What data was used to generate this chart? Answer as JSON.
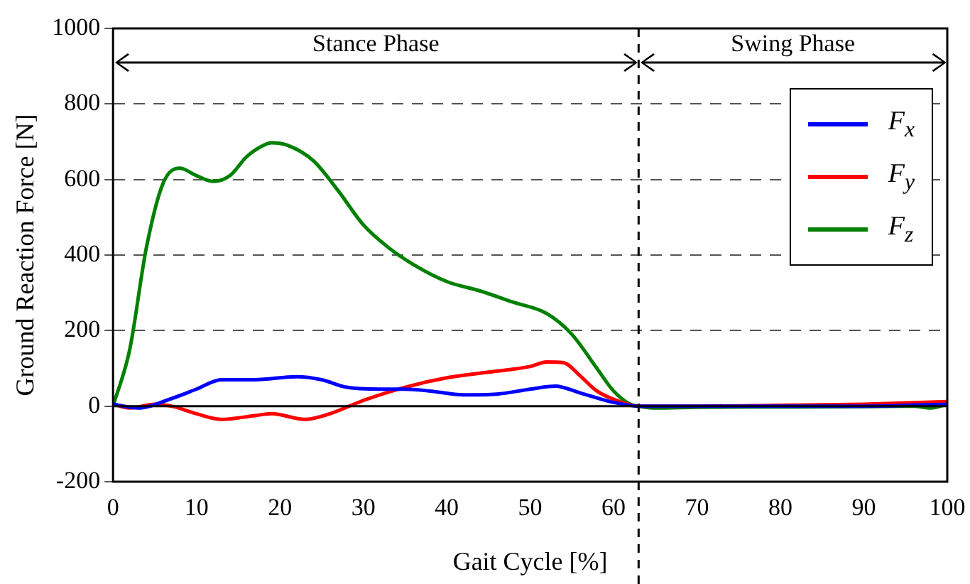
{
  "chart_data": {
    "type": "line",
    "xlabel": "Gait Cycle [%]",
    "ylabel": "Ground Reaction Force [N]",
    "xlim": [
      0,
      100
    ],
    "xticks": [
      0,
      10,
      20,
      30,
      40,
      50,
      60,
      70,
      80,
      90,
      100
    ],
    "ylim": [
      -200,
      1000
    ],
    "yticks": [
      -200,
      0,
      200,
      400,
      600,
      800,
      1000
    ],
    "grid": "y",
    "legend": "top right",
    "marker": "none",
    "line_style": "solid",
    "ref_lines": [
      {
        "axis": "x",
        "value": 63,
        "line_style": "dashed",
        "color": "#000000"
      }
    ],
    "annotations": [
      "Stance Phase",
      "Swing Phase"
    ],
    "series": [
      {
        "name": "F$_{x}$",
        "color": "#0000ff",
        "x": [
          0,
          3,
          7,
          10,
          13,
          17,
          22,
          25,
          28,
          32,
          35,
          38,
          42,
          46,
          50,
          53,
          56,
          60,
          63,
          70,
          80,
          90,
          100
        ],
        "values": [
          5,
          -5,
          20,
          45,
          70,
          70,
          78,
          70,
          50,
          45,
          45,
          40,
          30,
          32,
          45,
          53,
          35,
          10,
          0,
          0,
          0,
          0,
          5
        ]
      },
      {
        "name": "F$_{y}$",
        "color": "#ff0000",
        "x": [
          0,
          2,
          5,
          7,
          10,
          13,
          17,
          19,
          23,
          26,
          30,
          35,
          40,
          45,
          50,
          52,
          54,
          56,
          58,
          61,
          63,
          70,
          80,
          90,
          100
        ],
        "values": [
          5,
          -5,
          5,
          0,
          -20,
          -35,
          -25,
          -20,
          -35,
          -20,
          15,
          50,
          75,
          90,
          105,
          117,
          115,
          80,
          40,
          10,
          0,
          0,
          2,
          5,
          12
        ]
      },
      {
        "name": "F$_{z}$",
        "color": "#008000",
        "x": [
          0,
          2,
          4,
          6,
          8,
          10,
          12,
          14,
          16,
          18,
          19,
          21,
          24,
          27,
          30,
          33,
          36,
          40,
          44,
          48,
          52,
          55,
          58,
          60,
          62,
          63,
          65,
          70,
          80,
          90,
          96,
          98,
          100
        ],
        "values": [
          0,
          150,
          420,
          590,
          630,
          610,
          595,
          610,
          660,
          690,
          697,
          690,
          650,
          570,
          480,
          420,
          375,
          330,
          305,
          275,
          245,
          190,
          100,
          40,
          5,
          0,
          -5,
          -3,
          -2,
          -1,
          0,
          -5,
          5
        ]
      }
    ]
  }
}
